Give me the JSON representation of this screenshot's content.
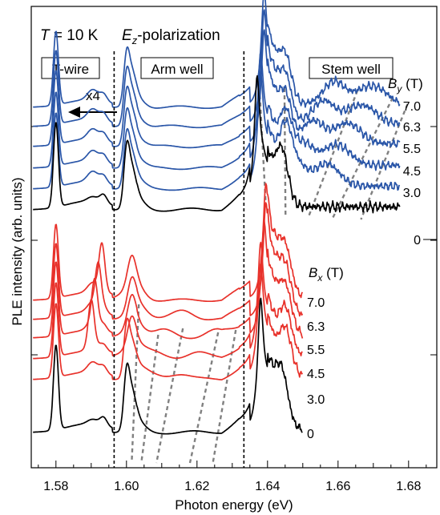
{
  "header": {
    "temp_symbol": "T",
    "temp_rest": " = 10 K",
    "pol_symbol": "E",
    "pol_sub": "z",
    "pol_rest": "-polarization"
  },
  "regions": {
    "twire": "T-wire",
    "arm": "Arm well",
    "stem": "Stem well"
  },
  "arrow_label": "x4",
  "field_y": {
    "symbol": "B",
    "sub": "y",
    "unit": " (T)"
  },
  "field_x": {
    "symbol": "B",
    "sub": "x",
    "unit": " (T)"
  },
  "colors": {
    "by": "#2a56a8",
    "bx": "#e8312a",
    "zero": "#000000",
    "guide": "#808080"
  },
  "chart_data": {
    "type": "line",
    "xlabel": "Photon energy (eV)",
    "ylabel": "PLE intensity (arb. units)",
    "xlim": [
      1.573,
      1.688
    ],
    "xticks": [
      "1.58",
      "1.60",
      "1.62",
      "1.64",
      "1.66",
      "1.68"
    ],
    "xtick_values": [
      1.58,
      1.6,
      1.62,
      1.64,
      1.66,
      1.68
    ],
    "dividers_ev": [
      1.5965,
      1.6333
    ],
    "by_labels": [
      "7.0",
      "6.3",
      "5.5",
      "4.5",
      "3.0",
      "0"
    ],
    "bx_labels": [
      "7.0",
      "6.3",
      "5.5",
      "4.5",
      "3.0",
      "0"
    ],
    "by_series": [
      {
        "name": "7.0",
        "peaks_ev": [
          1.58,
          1.6,
          1.639,
          1.645,
          1.659,
          1.671
        ]
      },
      {
        "name": "6.3",
        "peaks_ev": [
          1.58,
          1.6,
          1.639,
          1.645,
          1.656,
          1.668
        ]
      },
      {
        "name": "5.5",
        "peaks_ev": [
          1.58,
          1.6,
          1.639,
          1.645,
          1.653,
          1.664
        ]
      },
      {
        "name": "4.5",
        "peaks_ev": [
          1.58,
          1.6,
          1.638,
          1.645,
          1.65,
          1.661
        ]
      },
      {
        "name": "3.0",
        "peaks_ev": [
          1.58,
          1.6,
          1.638,
          1.645,
          1.648,
          1.658
        ]
      },
      {
        "name": "0",
        "peaks_ev": [
          1.58,
          1.6,
          1.637,
          1.644
        ]
      }
    ],
    "bx_series": [
      {
        "name": "7.0",
        "peaks_ev": [
          1.58,
          1.593,
          1.601,
          1.6395,
          1.645
        ]
      },
      {
        "name": "6.3",
        "peaks_ev": [
          1.58,
          1.592,
          1.6035,
          1.616,
          1.6395,
          1.645
        ]
      },
      {
        "name": "5.5",
        "peaks_ev": [
          1.58,
          1.591,
          1.6015,
          1.6105,
          1.6255,
          1.639,
          1.645
        ]
      },
      {
        "name": "4.5",
        "peaks_ev": [
          1.58,
          1.59,
          1.6,
          1.607,
          1.62,
          1.638,
          1.645
        ]
      },
      {
        "name": "3.0",
        "peaks_ev": [
          1.58,
          1.6,
          1.606,
          1.615,
          1.638,
          1.645
        ]
      },
      {
        "name": "0",
        "peaks_ev": [
          1.58,
          1.6,
          1.638,
          1.644
        ]
      }
    ],
    "guides_ev": [
      [
        [
          1.6375,
          1.6455
        ],
        [
          1.6395,
          1.7
        ]
      ],
      [
        [
          1.6447,
          1.6535
        ],
        [
          1.6452,
          1.7
        ]
      ],
      [
        [
          1.65,
          1.6695
        ],
        [
          1.6595,
          1.7
        ]
      ],
      [
        [
          1.659,
          1.6757
        ],
        [
          1.671,
          1.7
        ]
      ],
      [
        [
          1.6625,
          1.6797
        ],
        [
          1.6735,
          1.7
        ]
      ],
      [
        [
          1.6035,
          1.275
        ],
        [
          1.6015,
          0.45
        ]
      ],
      [
        [
          1.6045,
          0.05
        ],
        [
          1.6145,
          0.45
        ]
      ],
      [
        [
          1.6085,
          0.05
        ],
        [
          1.6165,
          0.45
        ]
      ],
      [
        [
          1.6245,
          0.05
        ],
        [
          1.6395,
          0.45
        ]
      ]
    ]
  }
}
